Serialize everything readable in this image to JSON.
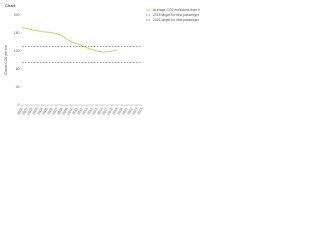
{
  "chart_data": {
    "type": "line",
    "title": "Chart",
    "y_label": "Grams CO2 per km",
    "x": [
      2000,
      2001,
      2002,
      2003,
      2004,
      2005,
      2006,
      2007,
      2008,
      2009,
      2010,
      2011,
      2012,
      2013,
      2014,
      2015,
      2016,
      2017,
      2018,
      2019,
      2020,
      2021,
      2022,
      2023,
      2024
    ],
    "series": [
      {
        "name": "Average CO2 emissions from new passenger cars",
        "color": "#c8d26e",
        "dash": false,
        "values": [
          172,
          170,
          167,
          165,
          163,
          162,
          161,
          158,
          154,
          146,
          140,
          136,
          132,
          127,
          123,
          120,
          118,
          118,
          120,
          122,
          null,
          null,
          null,
          null,
          null
        ]
      },
      {
        "name": "2015 target for new passenger cars",
        "color": "#333333",
        "dash": true,
        "values": [
          130,
          130,
          130,
          130,
          130,
          130,
          130,
          130,
          130,
          130,
          130,
          130,
          130,
          130,
          130,
          130,
          130,
          130,
          130,
          130,
          130,
          130,
          130,
          130,
          130
        ]
      },
      {
        "name": "2021 target for new passenger cars",
        "color": "#333333",
        "dash": true,
        "values": [
          95,
          95,
          95,
          95,
          95,
          95,
          95,
          95,
          95,
          95,
          95,
          95,
          95,
          95,
          95,
          95,
          95,
          95,
          95,
          95,
          95,
          95,
          95,
          95,
          95
        ]
      }
    ],
    "xlim": [
      2000,
      2024
    ],
    "xticks": [
      2000,
      2001,
      2002,
      2003,
      2004,
      2005,
      2006,
      2007,
      2008,
      2009,
      2010,
      2011,
      2012,
      2013,
      2014,
      2015,
      2016,
      2017,
      2018,
      2019,
      2020,
      2021,
      2022,
      2023,
      2024
    ],
    "ylim": [
      0,
      200
    ],
    "yticks": [
      0,
      40,
      80,
      120,
      160,
      200
    ],
    "grid": false,
    "legend": "right"
  }
}
